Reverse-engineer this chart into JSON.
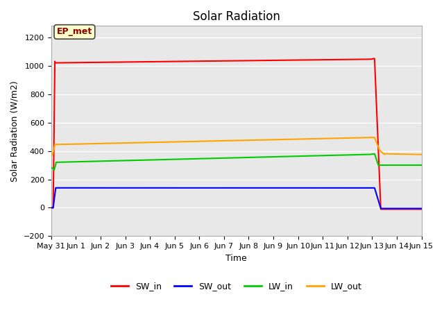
{
  "title": "Solar Radiation",
  "xlabel": "Time",
  "ylabel": "Solar Radiation (W/m2)",
  "ylim": [
    -200,
    1280
  ],
  "yticks": [
    -200,
    0,
    200,
    400,
    600,
    800,
    1000,
    1200
  ],
  "plot_bgcolor": "#e8e8e8",
  "fig_bgcolor": "#ffffff",
  "grid_color": "#ffffff",
  "annotation_text": "EP_met",
  "annotation_facecolor": "#ffffcc",
  "annotation_edgecolor": "#444444",
  "annotation_textcolor": "#8B0000",
  "x_tick_labels": [
    "May 31",
    "Jun 1",
    "Jun 2",
    "Jun 3",
    "Jun 4",
    "Jun 5",
    "Jun 6",
    "Jun 7",
    "Jun 8",
    "Jun 9",
    "Jun 10",
    "Jun 11",
    "Jun 12",
    "Jun 13",
    "Jun 14",
    "Jun 15"
  ],
  "SW_in_color": "#ff0000",
  "SW_out_color": "#0000ff",
  "LW_in_color": "#00cc00",
  "LW_out_color": "#ffa500",
  "legend_labels": [
    "SW_in",
    "SW_out",
    "LW_in",
    "LW_out"
  ],
  "xlim_start": 0,
  "xlim_end": 15,
  "linewidth": 1.5,
  "title_fontsize": 12,
  "axis_label_fontsize": 9,
  "tick_fontsize": 8,
  "legend_fontsize": 9
}
